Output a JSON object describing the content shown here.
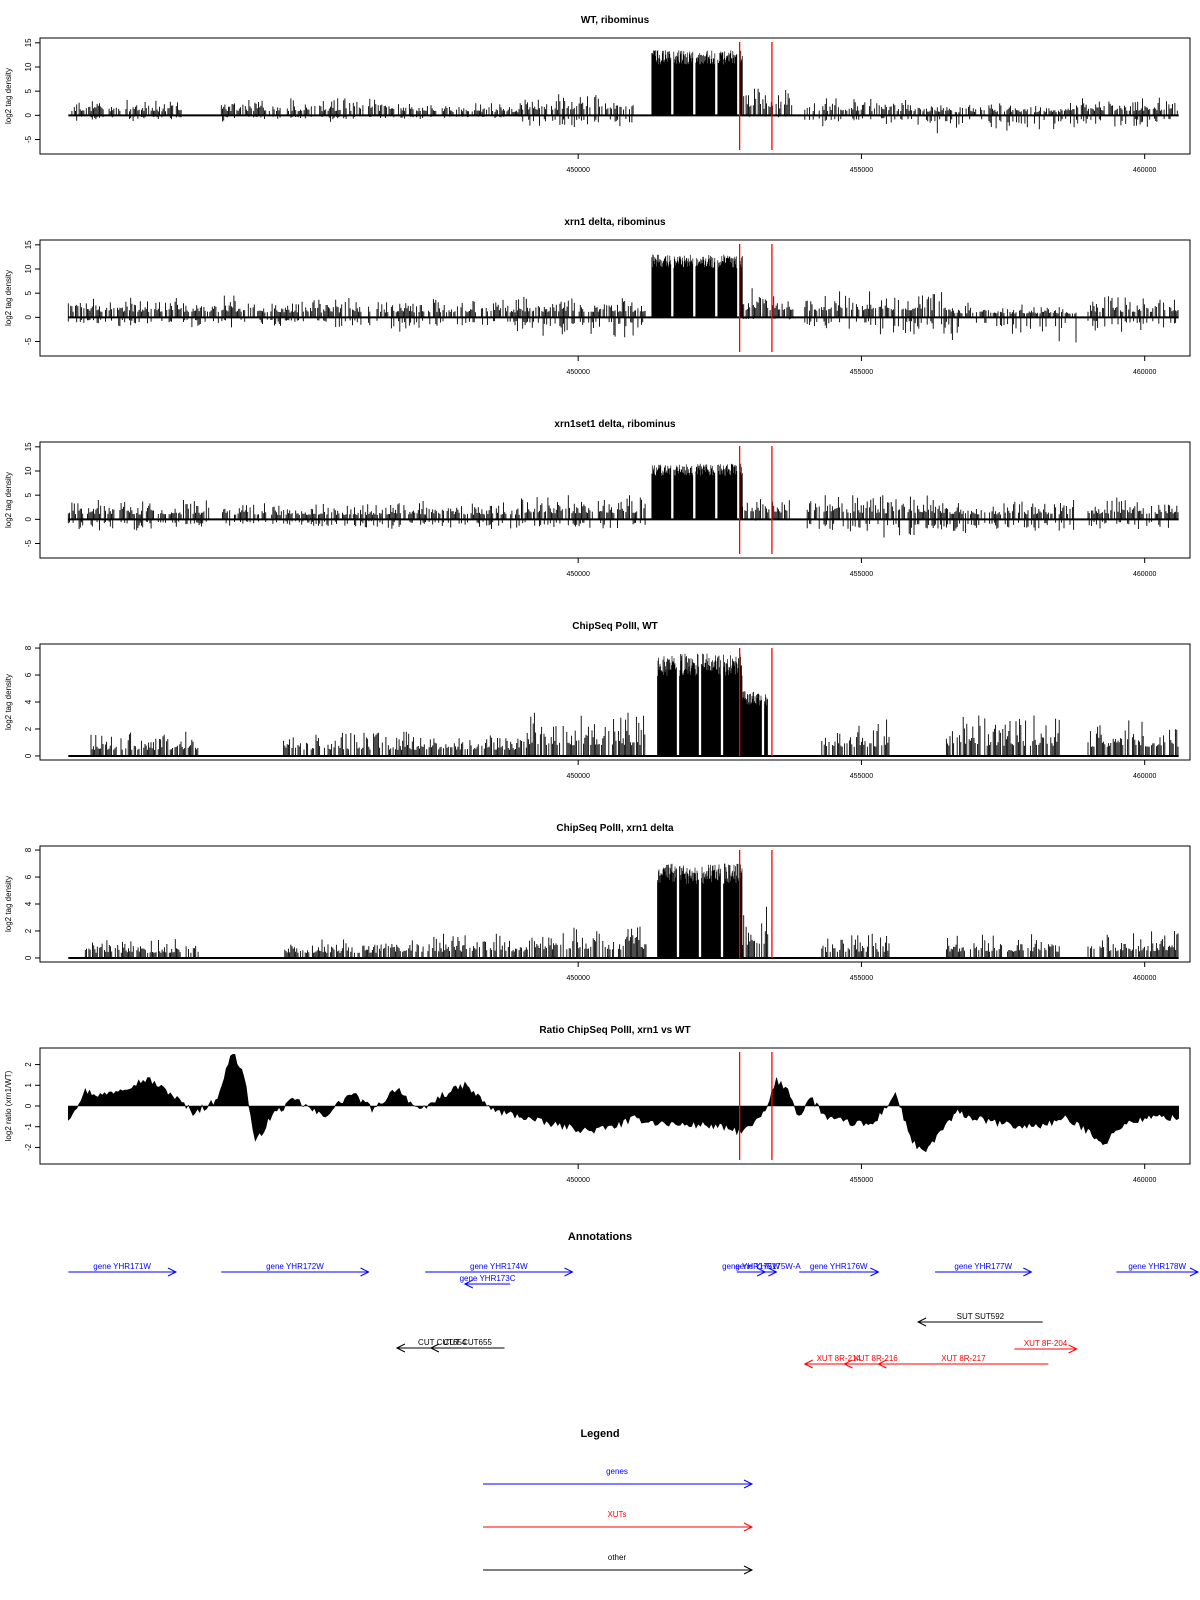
{
  "chart_data": [
    {
      "type": "bar",
      "title": "WT, ribominus",
      "ylabel": "log2 tag density",
      "ylim": [
        -8,
        16
      ],
      "yticks": [
        -5,
        0,
        5,
        10,
        15
      ],
      "xlim": [
        440500,
        460800
      ],
      "xticks": [
        450000,
        455000,
        460000
      ],
      "markers_x": [
        452850,
        453420
      ],
      "regions": [
        {
          "x": [
            441000,
            443000
          ],
          "top": 3.2,
          "bottom": -1.2
        },
        {
          "x": [
            443700,
            446200
          ],
          "top": 3.5,
          "bottom": -1.5
        },
        {
          "x": [
            446300,
            447500
          ],
          "top": 3.5,
          "bottom": -1.0
        },
        {
          "x": [
            447600,
            449000
          ],
          "top": 2.5,
          "bottom": -0.8
        },
        {
          "x": [
            449000,
            451000
          ],
          "top": 4.5,
          "bottom": -3.5
        },
        {
          "x": [
            451300,
            452900
          ],
          "top": 13.5,
          "bottom": 0
        },
        {
          "x": [
            452900,
            453800
          ],
          "top": 5.5,
          "bottom": -0.5
        },
        {
          "x": [
            454000,
            456000
          ],
          "top": 3.5,
          "bottom": -2.5
        },
        {
          "x": [
            456000,
            458500
          ],
          "top": 2.5,
          "bottom": -4.0
        },
        {
          "x": [
            458500,
            460600
          ],
          "top": 3.8,
          "bottom": -3.5
        }
      ]
    },
    {
      "type": "bar",
      "title": "xrn1 delta, ribominus",
      "ylabel": "log2 tag density",
      "ylim": [
        -8,
        16
      ],
      "yticks": [
        -5,
        0,
        5,
        10,
        15
      ],
      "xlim": [
        440500,
        460800
      ],
      "xticks": [
        450000,
        455000,
        460000
      ],
      "markers_x": [
        452850,
        453420
      ],
      "regions": [
        {
          "x": [
            441000,
            444300
          ],
          "top": 4.5,
          "bottom": -2.5
        },
        {
          "x": [
            444300,
            446200
          ],
          "top": 4.0,
          "bottom": -2.5
        },
        {
          "x": [
            446300,
            449000
          ],
          "top": 4.0,
          "bottom": -3.5
        },
        {
          "x": [
            449000,
            451200
          ],
          "top": 4.5,
          "bottom": -4.5
        },
        {
          "x": [
            451300,
            452900
          ],
          "top": 13.0,
          "bottom": 0
        },
        {
          "x": [
            452900,
            453800
          ],
          "top": 6.0,
          "bottom": -0.5
        },
        {
          "x": [
            454000,
            456500
          ],
          "top": 5.5,
          "bottom": -4.0
        },
        {
          "x": [
            456500,
            458800
          ],
          "top": 3.0,
          "bottom": -5.5
        },
        {
          "x": [
            459000,
            460600
          ],
          "top": 4.5,
          "bottom": -3.5
        }
      ]
    },
    {
      "type": "bar",
      "title": "xrn1set1 delta, ribominus",
      "ylabel": "log2 tag density",
      "ylim": [
        -8,
        16
      ],
      "yticks": [
        -5,
        0,
        5,
        10,
        15
      ],
      "xlim": [
        440500,
        460800
      ],
      "xticks": [
        450000,
        455000,
        460000
      ],
      "markers_x": [
        452850,
        453420
      ],
      "regions": [
        {
          "x": [
            441000,
            443500
          ],
          "top": 4.0,
          "bottom": -2.5
        },
        {
          "x": [
            443700,
            446500
          ],
          "top": 3.5,
          "bottom": -2.0
        },
        {
          "x": [
            446500,
            449000
          ],
          "top": 3.8,
          "bottom": -2.5
        },
        {
          "x": [
            449000,
            451200
          ],
          "top": 5.0,
          "bottom": -3.0
        },
        {
          "x": [
            451300,
            452900
          ],
          "top": 11.5,
          "bottom": 0
        },
        {
          "x": [
            452900,
            453800
          ],
          "top": 5.5,
          "bottom": -0.5
        },
        {
          "x": [
            454000,
            456500
          ],
          "top": 5.0,
          "bottom": -4.5
        },
        {
          "x": [
            456500,
            458800
          ],
          "top": 4.0,
          "bottom": -3.5
        },
        {
          "x": [
            459000,
            460600
          ],
          "top": 4.5,
          "bottom": -2.5
        }
      ]
    },
    {
      "type": "bar",
      "title": "ChipSeq PolII, WT",
      "ylabel": "log2 tag density",
      "ylim": [
        -0.3,
        8.3
      ],
      "yticks": [
        0,
        2,
        4,
        6,
        8
      ],
      "xlim": [
        440500,
        460800
      ],
      "xticks": [
        450000,
        455000,
        460000
      ],
      "markers_x": [
        452850,
        453420
      ],
      "regions": [
        {
          "x": [
            441400,
            443300
          ],
          "top": 1.8,
          "bottom": 0
        },
        {
          "x": [
            444800,
            446500
          ],
          "top": 1.9,
          "bottom": 0
        },
        {
          "x": [
            446500,
            449100
          ],
          "top": 1.8,
          "bottom": 0
        },
        {
          "x": [
            449100,
            451200
          ],
          "top": 3.2,
          "bottom": 0
        },
        {
          "x": [
            451400,
            452900
          ],
          "top": 7.6,
          "bottom": 0
        },
        {
          "x": [
            452900,
            453350
          ],
          "top": 4.8,
          "bottom": 0
        },
        {
          "x": [
            454300,
            455500
          ],
          "top": 2.7,
          "bottom": 0
        },
        {
          "x": [
            456500,
            458500
          ],
          "top": 3.0,
          "bottom": 0
        },
        {
          "x": [
            459000,
            460600
          ],
          "top": 2.7,
          "bottom": 0
        }
      ]
    },
    {
      "type": "bar",
      "title": "ChipSeq PolII, xrn1 delta",
      "ylabel": "log2 tag density",
      "ylim": [
        -0.3,
        8.3
      ],
      "yticks": [
        0,
        2,
        4,
        6,
        8
      ],
      "xlim": [
        440500,
        460800
      ],
      "xticks": [
        450000,
        455000,
        460000
      ],
      "markers_x": [
        452850,
        453420
      ],
      "regions": [
        {
          "x": [
            441300,
            443300
          ],
          "top": 1.5,
          "bottom": 0
        },
        {
          "x": [
            444800,
            446500
          ],
          "top": 1.5,
          "bottom": 0
        },
        {
          "x": [
            446500,
            449100
          ],
          "top": 1.8,
          "bottom": 0
        },
        {
          "x": [
            449100,
            451200
          ],
          "top": 2.5,
          "bottom": 0
        },
        {
          "x": [
            451400,
            452900
          ],
          "top": 7.0,
          "bottom": 0
        },
        {
          "x": [
            452900,
            453350
          ],
          "top": 3.8,
          "bottom": 0
        },
        {
          "x": [
            454300,
            455500
          ],
          "top": 1.8,
          "bottom": 0
        },
        {
          "x": [
            456500,
            458500
          ],
          "top": 1.8,
          "bottom": 0
        },
        {
          "x": [
            459000,
            460600
          ],
          "top": 2.0,
          "bottom": 0
        }
      ]
    },
    {
      "type": "area",
      "title": "Ratio ChipSeq PolII, xrn1 vs WT",
      "ylabel": "log2 ratio (xrn1/WT)",
      "ylim": [
        -2.8,
        2.8
      ],
      "yticks": [
        -2,
        -1,
        0,
        1,
        2
      ],
      "xlim": [
        440500,
        460800
      ],
      "xticks": [
        450000,
        455000,
        460000
      ],
      "markers_x": [
        452850,
        453420
      ],
      "x": [
        441000,
        441300,
        441600,
        442000,
        442400,
        442800,
        443200,
        443600,
        443900,
        444100,
        444300,
        444600,
        445000,
        445500,
        446000,
        446400,
        446800,
        447200,
        447600,
        448000,
        448500,
        449000,
        449400,
        449800,
        450200,
        450600,
        451000,
        451400,
        451800,
        452200,
        452500,
        452800,
        453000,
        453300,
        453500,
        453700,
        453900,
        454100,
        454400,
        454800,
        455200,
        455600,
        455900,
        456100,
        456400,
        456700,
        457000,
        457400,
        457800,
        458200,
        458600,
        459000,
        459300,
        459600,
        460000,
        460300,
        460600
      ],
      "y": [
        -0.6,
        0.7,
        0.5,
        0.9,
        1.3,
        0.6,
        -0.3,
        0.2,
        2.6,
        1.5,
        -1.8,
        -0.4,
        0.3,
        -0.5,
        0.6,
        -0.2,
        0.9,
        -0.3,
        0.5,
        1.0,
        -0.2,
        -0.5,
        -0.8,
        -1.0,
        -1.2,
        -1.0,
        -0.6,
        -0.8,
        -0.9,
        -0.9,
        -1.0,
        -1.2,
        -1.1,
        -0.3,
        1.2,
        0.8,
        -0.5,
        0.4,
        -0.6,
        -0.8,
        -0.9,
        0.6,
        -1.7,
        -2.3,
        -1.2,
        -0.3,
        -0.6,
        -0.8,
        -1.0,
        -0.9,
        -0.6,
        -1.2,
        -1.8,
        -0.9,
        -0.6,
        -0.5,
        -0.6
      ]
    }
  ],
  "annotations": {
    "title": "Annotations",
    "items": [
      {
        "label": "gene YHR171W",
        "x1": 441000,
        "x2": 442900,
        "row": 0,
        "dir": "right",
        "kind": "gene"
      },
      {
        "label": "gene YHR172W",
        "x1": 443700,
        "x2": 446300,
        "row": 0,
        "dir": "right",
        "kind": "gene"
      },
      {
        "label": "gene YHR173C",
        "x1": 448800,
        "x2": 448000,
        "row": 1,
        "dir": "left",
        "kind": "gene"
      },
      {
        "label": "gene YHR174W",
        "x1": 447300,
        "x2": 449900,
        "row": 0,
        "dir": "right",
        "kind": "gene"
      },
      {
        "label": "gene YHR175W",
        "x1": 452800,
        "x2": 453300,
        "row": 0,
        "dir": "right",
        "kind": "gene"
      },
      {
        "label": "gene YHR175W-A",
        "x1": 453200,
        "x2": 453500,
        "row": 0,
        "dir": "right",
        "kind": "gene"
      },
      {
        "label": "gene YHR176W",
        "x1": 453900,
        "x2": 455300,
        "row": 0,
        "dir": "right",
        "kind": "gene"
      },
      {
        "label": "gene YHR177W",
        "x1": 456300,
        "x2": 458000,
        "row": 0,
        "dir": "right",
        "kind": "gene"
      },
      {
        "label": "gene YHR178W",
        "x1": 459500,
        "x2": 461000,
        "row": 0,
        "dir": "right",
        "kind": "gene"
      },
      {
        "label": "SUT SUT592",
        "x1": 458200,
        "x2": 456000,
        "row": 2,
        "dir": "left",
        "kind": "other"
      },
      {
        "label": "CUT CUT654",
        "x1": 448400,
        "x2": 446800,
        "row": 3,
        "dir": "left",
        "kind": "other"
      },
      {
        "label": "CUT CUT655",
        "x1": 448700,
        "x2": 447400,
        "row": 3,
        "dir": "left",
        "kind": "other"
      },
      {
        "label": "XUT 8F-204",
        "x1": 457700,
        "x2": 458800,
        "row": 4,
        "dir": "right",
        "kind": "xut"
      },
      {
        "label": "XUT 8R-214",
        "x1": 455200,
        "x2": 454000,
        "row": 5,
        "dir": "left",
        "kind": "xut"
      },
      {
        "label": "XUT 8R-216",
        "x1": 455800,
        "x2": 454700,
        "row": 5,
        "dir": "left",
        "kind": "xut"
      },
      {
        "label": "XUT 8R-217",
        "x1": 458300,
        "x2": 455300,
        "row": 5,
        "dir": "left",
        "kind": "xut"
      }
    ]
  },
  "legend": {
    "title": "Legend",
    "items": [
      {
        "label": "genes",
        "kind": "gene"
      },
      {
        "label": "XUTs",
        "kind": "xut"
      },
      {
        "label": "other",
        "kind": "other"
      }
    ]
  },
  "colors": {
    "gene": "#0000ff",
    "xut": "#ff0000",
    "other": "#000000",
    "marker": "#ff0000",
    "bars": "#000000"
  }
}
